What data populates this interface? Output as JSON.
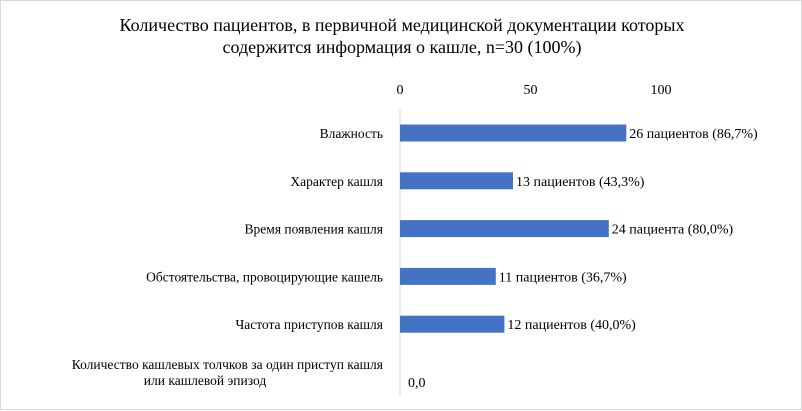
{
  "chart_data": {
    "type": "bar",
    "orientation": "horizontal",
    "title_lines": [
      "Количество пациентов, в первичной медицинской документации которых",
      "содержится информация о кашле, n=30 (100%)"
    ],
    "xlim": [
      0,
      100
    ],
    "x_ticks": [
      "0",
      "50",
      "100"
    ],
    "x_tick_values": [
      0,
      50,
      100
    ],
    "x_axis_position": "top",
    "grid": false,
    "bar_color": "#4472c4",
    "categories": [
      [
        "Влажность"
      ],
      [
        "Характер кашля"
      ],
      [
        "Время появления кашля"
      ],
      [
        "Обстоятельства, провоцирующие кашель"
      ],
      [
        "Частота приступов кашля"
      ],
      [
        "Количество кашлевых  толчков за один приступ кашля",
        "или кашлевой  эпизод"
      ]
    ],
    "values": [
      86.7,
      43.3,
      80.0,
      36.7,
      40.0,
      0.0
    ],
    "data_labels": [
      "26 пациентов (86,7%)",
      "13 пациентов (43,3%)",
      "24 пациента (80,0%)",
      "11 пациентов (36,7%)",
      "12 пациентов (40,0%)",
      "0,0"
    ]
  }
}
